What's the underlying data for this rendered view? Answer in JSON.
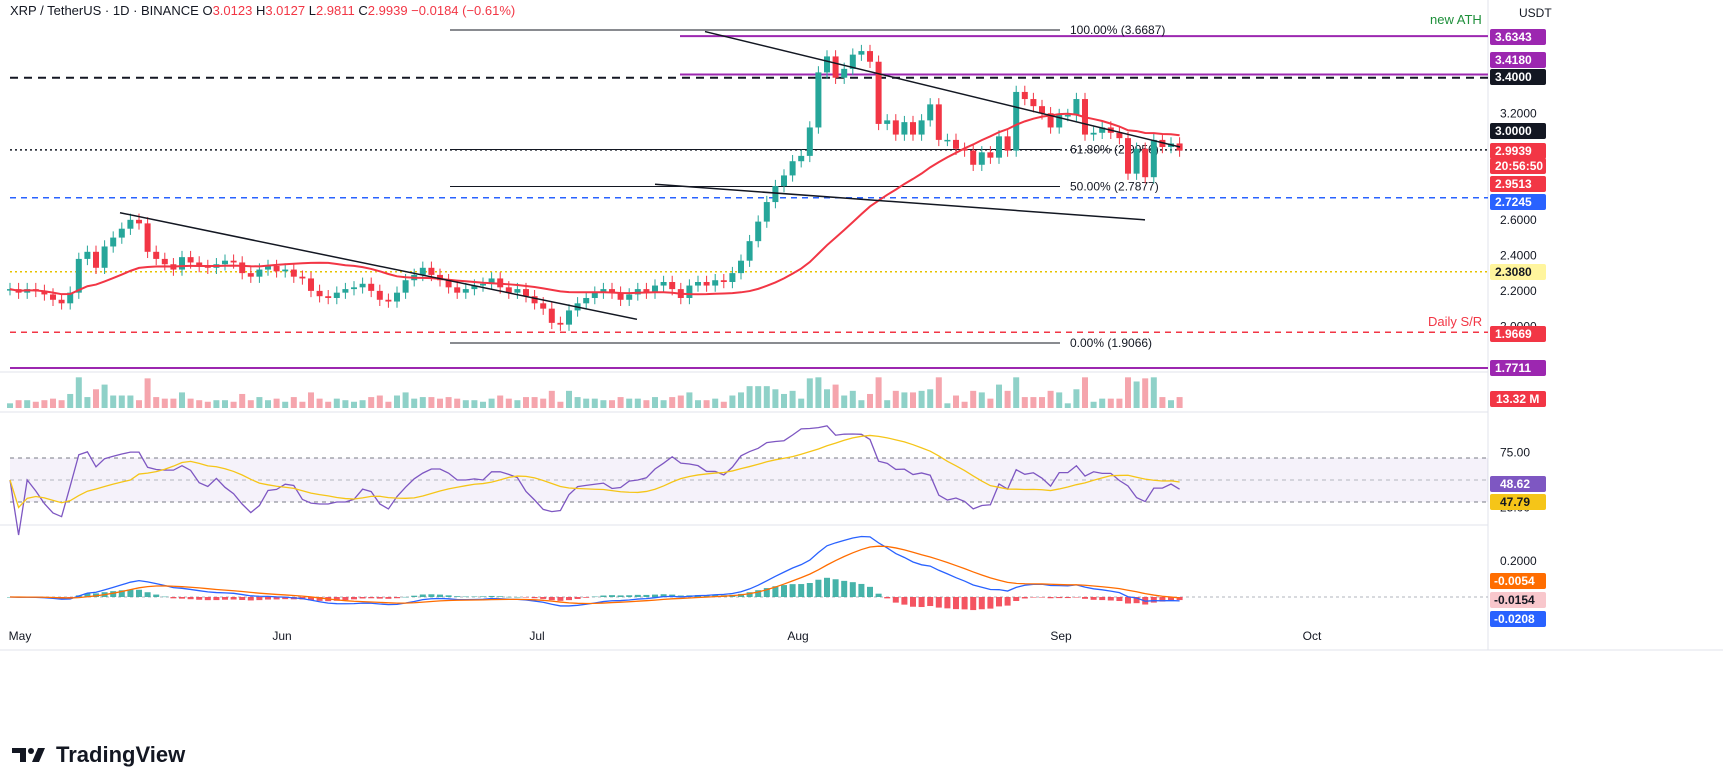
{
  "header": {
    "symbol": "XRP / TetherUS · 1D · BINANCE",
    "open_label": "O",
    "open": "3.0123",
    "high_label": "H",
    "high": "3.0127",
    "low_label": "L",
    "low": "2.9811",
    "close_label": "C",
    "close": "2.9939",
    "change": "−0.0184 (−0.61%)"
  },
  "brand": "TradingView",
  "currency": "USDT",
  "colors": {
    "up": "#26a69a",
    "down": "#f23645",
    "ma": "#f23645",
    "rsi": "#7e57c2",
    "rsi_ma": "#f5c518",
    "macd": "#2962ff",
    "signal": "#ff6d00",
    "trend": "#131722",
    "purple": "#9c27b0",
    "blue": "#2962ff"
  },
  "chart_data": [
    {
      "type": "candlestick",
      "pane": "price",
      "x_ticks": [
        "May",
        "Jun",
        "Jul",
        "Aug",
        "Sep",
        "Oct"
      ],
      "y_ticks": [
        "3.2000",
        "2.6000",
        "2.4000",
        "2.2000",
        "2.0000"
      ],
      "ylim": [
        1.75,
        3.7
      ],
      "dates_start": "2025-05-01",
      "last_date": "2025-08-26",
      "closes": [
        2.21,
        2.19,
        2.21,
        2.2,
        2.18,
        2.15,
        2.13,
        2.19,
        2.38,
        2.42,
        2.33,
        2.45,
        2.5,
        2.55,
        2.6,
        2.58,
        2.42,
        2.38,
        2.35,
        2.32,
        2.39,
        2.36,
        2.34,
        2.33,
        2.35,
        2.37,
        2.36,
        2.3,
        2.28,
        2.32,
        2.34,
        2.31,
        2.32,
        2.28,
        2.27,
        2.2,
        2.17,
        2.16,
        2.19,
        2.21,
        2.22,
        2.24,
        2.2,
        2.15,
        2.14,
        2.19,
        2.26,
        2.29,
        2.33,
        2.29,
        2.26,
        2.22,
        2.19,
        2.21,
        2.23,
        2.24,
        2.27,
        2.22,
        2.19,
        2.21,
        2.17,
        2.13,
        2.1,
        2.02,
        2.01,
        2.09,
        2.13,
        2.16,
        2.19,
        2.21,
        2.19,
        2.15,
        2.18,
        2.21,
        2.19,
        2.23,
        2.25,
        2.21,
        2.16,
        2.23,
        2.25,
        2.23,
        2.26,
        2.25,
        2.3,
        2.37,
        2.48,
        2.59,
        2.7,
        2.79,
        2.85,
        2.93,
        2.96,
        3.12,
        3.43,
        3.52,
        3.4,
        3.45,
        3.53,
        3.55,
        3.49,
        3.14,
        3.16,
        3.08,
        3.15,
        3.08,
        3.16,
        3.25,
        3.05,
        3.05,
        3.0,
        2.99,
        2.91,
        2.98,
        2.95,
        3.07,
        2.99,
        3.32,
        3.28,
        3.24,
        3.2,
        3.12,
        3.19,
        3.19,
        3.28,
        3.08,
        3.09,
        3.12,
        3.09,
        3.06,
        2.86,
        3.0,
        2.84,
        3.05,
        3.01,
        3.03,
        2.99
      ],
      "values_desc": "daily close (approx.)",
      "price_lines": [
        {
          "value": 3.6687,
          "label": "100.00% (3.6687)"
        },
        {
          "value": 2.9956,
          "label": "61.80% (2.9956)"
        },
        {
          "value": 2.7877,
          "label": "50.00% (2.7877)"
        },
        {
          "value": 1.9066,
          "label": "0.00% (1.9066)"
        }
      ],
      "levels": [
        {
          "value": 3.4,
          "label": "3.4000",
          "style": "dashed-black"
        },
        {
          "value": 2.9939,
          "label": "2.9939",
          "style": "dotted-black"
        },
        {
          "value": 2.7245,
          "label": "2.7245",
          "style": "dashed-blue"
        },
        {
          "value": 2.308,
          "label": "2.3080",
          "style": "dotted-yellow"
        },
        {
          "value": 1.9669,
          "label": "1.9669",
          "style": "dashed-red"
        },
        {
          "value": 3.6343,
          "label": "3.6343",
          "style": "purple"
        },
        {
          "value": 3.418,
          "label": "3.4180",
          "style": "purple"
        },
        {
          "value": 1.7711,
          "label": "1.7711",
          "style": "purple"
        }
      ],
      "price_badges": [
        {
          "text": "3.6343",
          "bg": "#9c27b0",
          "fg": "#ffffff"
        },
        {
          "text": "3.4180",
          "bg": "#9c27b0",
          "fg": "#ffffff"
        },
        {
          "text": "3.4000",
          "bg": "#131722",
          "fg": "#ffffff"
        },
        {
          "text": "3.0000",
          "bg": "#131722",
          "fg": "#ffffff"
        },
        {
          "text": "2.9939",
          "bg": "#f23645",
          "fg": "#ffffff"
        },
        {
          "text": "20:56:50",
          "bg": "#f23645",
          "fg": "#ffffff"
        },
        {
          "text": "2.9513",
          "bg": "#f23645",
          "fg": "#ffffff"
        },
        {
          "text": "2.7245",
          "bg": "#2962ff",
          "fg": "#ffffff"
        },
        {
          "text": "2.3080",
          "bg": "#fff59d",
          "fg": "#131722"
        },
        {
          "text": "1.9669",
          "bg": "#f23645",
          "fg": "#ffffff"
        },
        {
          "text": "1.7711",
          "bg": "#9c27b0",
          "fg": "#ffffff"
        }
      ],
      "annotations": [
        "new ATH",
        "Daily S/R"
      ],
      "sma_last": 2.9513
    },
    {
      "type": "bar",
      "pane": "volume",
      "last_value_label": "13.32 M"
    },
    {
      "type": "line",
      "pane": "rsi",
      "y_ticks": [
        "75.00",
        "25.00"
      ],
      "ylim": [
        20,
        100
      ],
      "rsi_last": "48.62",
      "rsi_ma_last": "47.79"
    },
    {
      "type": "line",
      "pane": "macd",
      "y_ticks": [
        "0.2000"
      ],
      "macd_last": "-0.0208",
      "signal_last": "-0.0054",
      "hist_last": "-0.0154"
    }
  ]
}
